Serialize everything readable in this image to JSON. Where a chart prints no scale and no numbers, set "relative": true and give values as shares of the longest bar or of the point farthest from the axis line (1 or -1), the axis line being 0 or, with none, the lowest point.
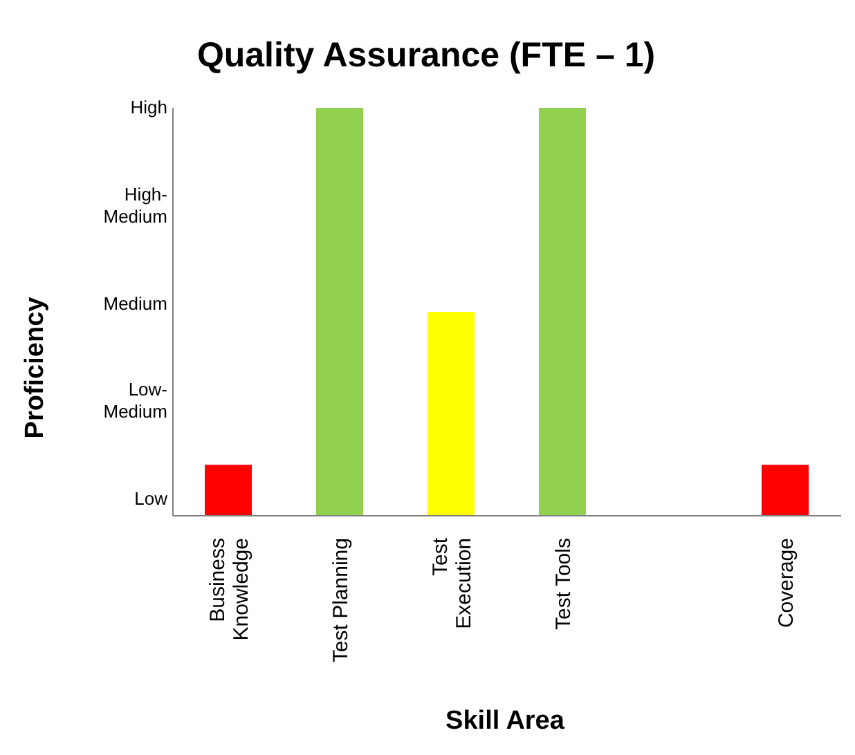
{
  "chart_data": {
    "type": "bar",
    "title": "Quality Assurance (FTE – 1)",
    "xlabel": "Skill Area",
    "ylabel": "Proficiency",
    "categories": [
      "Business Knowledge",
      "Test Planning",
      "Test Execution",
      "Test Tools",
      null,
      "Coverage"
    ],
    "values": [
      0.125,
      1,
      0.5,
      1,
      null,
      0.125
    ],
    "relative": true,
    "annotations": [
      "High",
      "High-Medium",
      "Medium",
      "Low-Medium",
      "Low"
    ],
    "colors": [
      "#ff0000",
      "#92d050",
      "#ffff00",
      "#92d050",
      "#ffffff",
      "#ff0000"
    ],
    "grid": false,
    "legend": false
  }
}
